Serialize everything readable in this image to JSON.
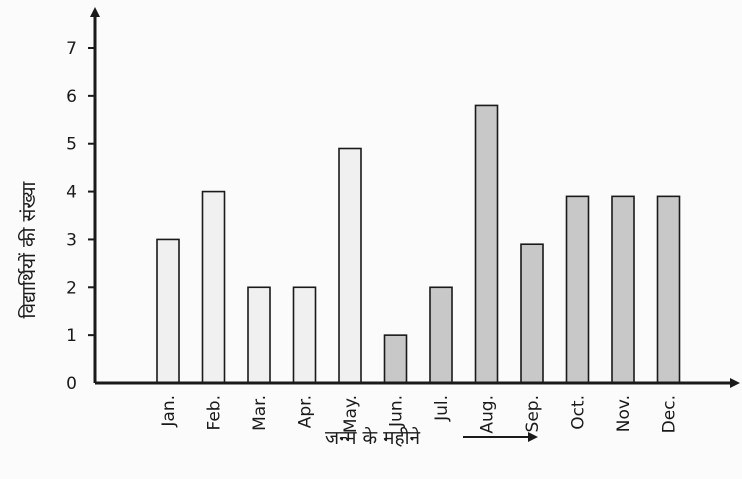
{
  "chart_data": {
    "type": "bar",
    "categories": [
      "Jan.",
      "Feb.",
      "Mar.",
      "Apr.",
      "May.",
      "Jun.",
      "Jul.",
      "Aug.",
      "Sep.",
      "Oct.",
      "Nov.",
      "Dec."
    ],
    "values": [
      3,
      4,
      2,
      2,
      4.9,
      1,
      2,
      5.8,
      2.9,
      3.9,
      3.9,
      3.9
    ],
    "title": "",
    "xlabel": "जन्म के महीने",
    "ylabel": "विद्यार्थियों की संख्या",
    "ylim": [
      0,
      7
    ],
    "yticks": [
      0,
      1,
      2,
      3,
      4,
      5,
      6,
      7
    ],
    "grid": false,
    "colors": {
      "bars_light": "#f0f0f0",
      "bars_dark": "#c8c8c8",
      "axis": "#1a1a1a"
    }
  }
}
